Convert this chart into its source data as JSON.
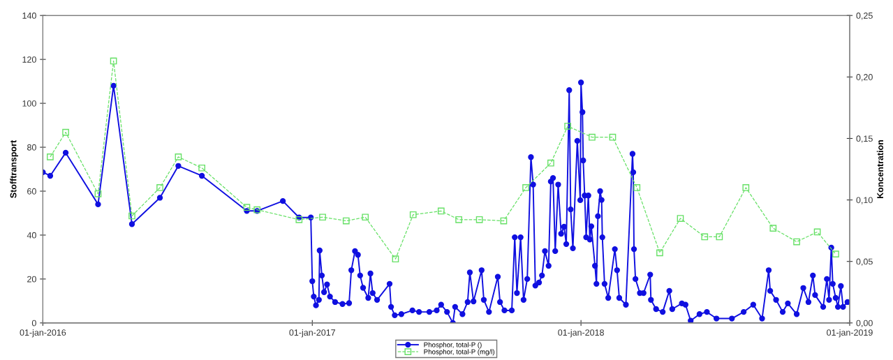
{
  "chart_data": {
    "type": "line",
    "ylabel": "Stofftransport",
    "y2label": "Koncentration",
    "xlim": [
      "2016-01-01",
      "2019-01-01"
    ],
    "xticks": [
      {
        "value": "2016-01-01",
        "label": "01-jan-2016"
      },
      {
        "value": "2017-01-01",
        "label": "01-jan-2017"
      },
      {
        "value": "2018-01-01",
        "label": "01-jan-2018"
      },
      {
        "value": "2019-01-01",
        "label": "01-jan-2019"
      }
    ],
    "ylim": [
      0,
      140
    ],
    "yticks": [
      0,
      20,
      40,
      60,
      80,
      100,
      120,
      140
    ],
    "y2lim": [
      0,
      0.25
    ],
    "y2ticks": [
      {
        "value": 0,
        "label": "0,00"
      },
      {
        "value": 0.05,
        "label": "0,05"
      },
      {
        "value": 0.1,
        "label": "0,10"
      },
      {
        "value": 0.15,
        "label": "0,15"
      },
      {
        "value": 0.2,
        "label": "0,20"
      },
      {
        "value": 0.25,
        "label": "0,25"
      }
    ],
    "grid": false,
    "legend": "bottom",
    "series": [
      {
        "name": "Phosphor, total-P ()",
        "color": "#1010e0",
        "marker": "circle",
        "line_style": "solid",
        "x": [
          "2016-01-01",
          "2016-01-11",
          "2016-02-01",
          "2016-03-16",
          "2016-04-06",
          "2016-05-01",
          "2016-06-08",
          "2016-07-03",
          "2016-08-04",
          "2016-10-04",
          "2016-10-18",
          "2016-11-22",
          "2016-12-14",
          "2016-12-30",
          "2017-01-01",
          "2017-01-03",
          "2017-01-06",
          "2017-01-10",
          "2017-01-11",
          "2017-01-14",
          "2017-01-17",
          "2017-01-21",
          "2017-01-25",
          "2017-02-01",
          "2017-02-11",
          "2017-02-20",
          "2017-02-23",
          "2017-02-28",
          "2017-03-04",
          "2017-03-07",
          "2017-03-11",
          "2017-03-18",
          "2017-03-21",
          "2017-03-24",
          "2017-03-30",
          "2017-04-16",
          "2017-04-18",
          "2017-04-23",
          "2017-05-02",
          "2017-05-17",
          "2017-05-26",
          "2017-06-09",
          "2017-06-19",
          "2017-06-25",
          "2017-07-03",
          "2017-07-11",
          "2017-07-14",
          "2017-07-24",
          "2017-07-31",
          "2017-08-03",
          "2017-08-08",
          "2017-08-19",
          "2017-08-22",
          "2017-08-29",
          "2017-09-10",
          "2017-09-13",
          "2017-09-19",
          "2017-09-29",
          "2017-10-03",
          "2017-10-06",
          "2017-10-11",
          "2017-10-15",
          "2017-10-20",
          "2017-10-25",
          "2017-10-28",
          "2017-10-31",
          "2017-11-05",
          "2017-11-09",
          "2017-11-13",
          "2017-11-18",
          "2017-11-21",
          "2017-11-24",
          "2017-11-27",
          "2017-12-01",
          "2017-12-05",
          "2017-12-09",
          "2017-12-12",
          "2017-12-16",
          "2017-12-18",
          "2017-12-21",
          "2017-12-27",
          "2017-12-31",
          "2018-01-01",
          "2018-01-03",
          "2018-01-04",
          "2018-01-06",
          "2018-01-08",
          "2018-01-11",
          "2018-01-13",
          "2018-01-15",
          "2018-01-20",
          "2018-01-22",
          "2018-01-24",
          "2018-01-27",
          "2018-01-29",
          "2018-01-30",
          "2018-02-02",
          "2018-02-07",
          "2018-02-16",
          "2018-02-19",
          "2018-02-22",
          "2018-03-03",
          "2018-03-12",
          "2018-03-13",
          "2018-03-14",
          "2018-03-16",
          "2018-03-22",
          "2018-03-27",
          "2018-04-05",
          "2018-04-06",
          "2018-04-13",
          "2018-04-22",
          "2018-05-01",
          "2018-05-05",
          "2018-05-18",
          "2018-05-23",
          "2018-05-30",
          "2018-06-11",
          "2018-06-21",
          "2018-07-04",
          "2018-07-25",
          "2018-08-10",
          "2018-08-23",
          "2018-09-04",
          "2018-09-13",
          "2018-09-15",
          "2018-09-23",
          "2018-10-02",
          "2018-10-09",
          "2018-10-21",
          "2018-10-30",
          "2018-11-06",
          "2018-11-12",
          "2018-11-15",
          "2018-11-26",
          "2018-12-01",
          "2018-12-04",
          "2018-12-07",
          "2018-12-09",
          "2018-12-13",
          "2018-12-16",
          "2018-12-20",
          "2018-12-23",
          "2018-12-29"
        ],
        "values": [
          68.6,
          67,
          77.5,
          54,
          108,
          45,
          57,
          71.5,
          67,
          51,
          51,
          55.5,
          48,
          48,
          19,
          12,
          8,
          10.5,
          33,
          21.6,
          14,
          17.5,
          12,
          9.5,
          8.6,
          9,
          24,
          32.7,
          31,
          21.6,
          16,
          11.4,
          22.5,
          13.6,
          10.5,
          17.8,
          7.3,
          3.5,
          4,
          5.7,
          5,
          5,
          5.7,
          8.3,
          5,
          0,
          7.3,
          4,
          9.5,
          23,
          9.8,
          24,
          10.5,
          5,
          21,
          9.5,
          5.7,
          5.7,
          39,
          13.6,
          39,
          10.5,
          20,
          75.5,
          63,
          17,
          18.4,
          21.6,
          32.7,
          26,
          64.4,
          66,
          32.7,
          63,
          40.6,
          43.8,
          35.9,
          106,
          51.7,
          34,
          82.9,
          55.9,
          109.5,
          96,
          74,
          58,
          39,
          58,
          38,
          44,
          26,
          17.8,
          48.6,
          60,
          56,
          39,
          17.8,
          11.4,
          33.6,
          24,
          11.4,
          8.3,
          77,
          68.6,
          33.6,
          20,
          13.6,
          13.6,
          22,
          10.5,
          6.3,
          5,
          14.6,
          6.3,
          8.9,
          8.3,
          1,
          4,
          5,
          2,
          2,
          5,
          8.3,
          2,
          24,
          14.6,
          10.5,
          5,
          8.9,
          4,
          15.9,
          9.5,
          21.6,
          12.7,
          7.3,
          20,
          10.5,
          34.3,
          17.8,
          11.4,
          7.3,
          16.8,
          7.3,
          9.5
        ]
      },
      {
        "name": "Phosphor, total-P (mg/l)",
        "color": "#66e066",
        "marker": "square",
        "line_style": "dashed",
        "axis": "y2",
        "x": [
          "2016-01-11",
          "2016-02-01",
          "2016-03-16",
          "2016-04-06",
          "2016-05-01",
          "2016-06-08",
          "2016-07-03",
          "2016-08-04",
          "2016-10-04",
          "2016-10-18",
          "2016-12-14",
          "2017-01-15",
          "2017-02-16",
          "2017-03-14",
          "2017-04-24",
          "2017-05-18",
          "2017-06-25",
          "2017-07-19",
          "2017-08-16",
          "2017-09-18",
          "2017-10-18",
          "2017-11-21",
          "2017-12-14",
          "2018-01-16",
          "2018-02-13",
          "2018-03-18",
          "2018-04-18",
          "2018-05-16",
          "2018-06-18",
          "2018-07-08",
          "2018-08-13",
          "2018-09-19",
          "2018-10-21",
          "2018-11-18",
          "2018-12-13"
        ],
        "values": [
          0.135,
          0.155,
          0.105,
          0.213,
          0.087,
          0.11,
          0.135,
          0.126,
          0.094,
          0.092,
          0.084,
          0.086,
          0.083,
          0.086,
          0.052,
          0.088,
          0.091,
          0.084,
          0.084,
          0.083,
          0.11,
          0.13,
          0.16,
          0.151,
          0.151,
          0.11,
          0.057,
          0.085,
          0.07,
          0.07,
          0.11,
          0.077,
          0.066,
          0.074,
          0.056
        ]
      }
    ]
  }
}
